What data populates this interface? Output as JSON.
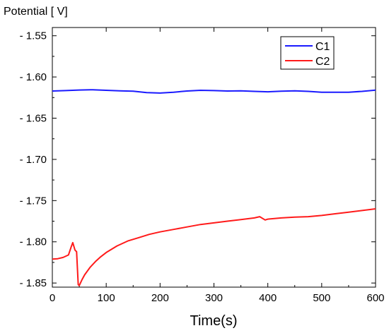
{
  "chart_data": {
    "type": "line",
    "title": "",
    "xlabel": "Time(s)",
    "ylabel": "Potential [ V]",
    "xlim": [
      0,
      600
    ],
    "ylim": [
      -1.855,
      -1.54
    ],
    "xticks": [
      0,
      100,
      200,
      300,
      400,
      500,
      600
    ],
    "xtick_labels": [
      "0",
      "100",
      "200",
      "300",
      "400",
      "500",
      "600"
    ],
    "yticks": [
      -1.55,
      -1.6,
      -1.65,
      -1.7,
      -1.75,
      -1.8,
      -1.85
    ],
    "ytick_labels": [
      "- 1.55",
      "- 1.60",
      "- 1.65",
      "- 1.70",
      "- 1.75",
      "- 1.80",
      "- 1.85"
    ],
    "grid": false,
    "legend_position": "top-right",
    "series": [
      {
        "name": "C1",
        "color": "#1a1aff",
        "x": [
          0,
          25,
          50,
          75,
          100,
          125,
          150,
          175,
          200,
          225,
          250,
          275,
          300,
          325,
          350,
          375,
          400,
          425,
          450,
          475,
          500,
          525,
          550,
          575,
          600
        ],
        "y": [
          -1.617,
          -1.6165,
          -1.6158,
          -1.6155,
          -1.6162,
          -1.6168,
          -1.6172,
          -1.619,
          -1.6195,
          -1.6185,
          -1.617,
          -1.6162,
          -1.6165,
          -1.617,
          -1.6168,
          -1.6175,
          -1.618,
          -1.6172,
          -1.6168,
          -1.6175,
          -1.6185,
          -1.6185,
          -1.6185,
          -1.6175,
          -1.616
        ]
      },
      {
        "name": "C2",
        "color": "#ff1a1a",
        "x": [
          0,
          10,
          20,
          30,
          35,
          38,
          42,
          45,
          48,
          50,
          55,
          60,
          70,
          80,
          90,
          100,
          120,
          140,
          160,
          180,
          200,
          225,
          250,
          275,
          300,
          325,
          350,
          375,
          385,
          395,
          400,
          425,
          450,
          475,
          500,
          525,
          550,
          575,
          600
        ],
        "y": [
          -1.821,
          -1.8205,
          -1.819,
          -1.816,
          -1.806,
          -1.801,
          -1.81,
          -1.812,
          -1.852,
          -1.853,
          -1.846,
          -1.84,
          -1.831,
          -1.824,
          -1.818,
          -1.813,
          -1.805,
          -1.799,
          -1.795,
          -1.791,
          -1.788,
          -1.785,
          -1.782,
          -1.779,
          -1.777,
          -1.775,
          -1.773,
          -1.771,
          -1.7695,
          -1.7735,
          -1.7725,
          -1.771,
          -1.77,
          -1.7695,
          -1.768,
          -1.766,
          -1.764,
          -1.762,
          -1.76
        ]
      }
    ]
  }
}
